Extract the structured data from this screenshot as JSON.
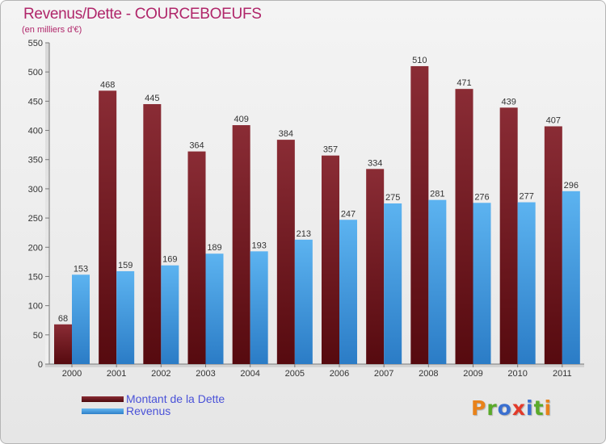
{
  "chart_data": {
    "type": "bar",
    "title": "Revenus/Dette - COURCEBOEUFS",
    "subtitle": "(en milliers d'€)",
    "categories": [
      "2000",
      "2001",
      "2002",
      "2003",
      "2004",
      "2005",
      "2006",
      "2007",
      "2008",
      "2009",
      "2010",
      "2011"
    ],
    "series": [
      {
        "name": "Montant de la Dette",
        "values": [
          68,
          468,
          445,
          364,
          409,
          384,
          357,
          334,
          510,
          471,
          439,
          407
        ],
        "color": "#7a1c24"
      },
      {
        "name": "Revenus",
        "values": [
          153,
          159,
          169,
          189,
          193,
          213,
          247,
          275,
          281,
          276,
          277,
          296
        ],
        "color": "#4aa3e6"
      }
    ],
    "ylim": [
      0,
      550
    ],
    "yticks": [
      0,
      50,
      100,
      150,
      200,
      250,
      300,
      350,
      400,
      450,
      500,
      550
    ],
    "grid": false,
    "legend_position": "bottom-left",
    "data_labels": true
  },
  "logo": {
    "text": "Proxiti",
    "letter_colors": [
      "#e8821a",
      "#5aaa2a",
      "#3a6fd0",
      "#e23a2a",
      "#3a6fd0",
      "#5aaa2a",
      "#e8821a"
    ]
  }
}
